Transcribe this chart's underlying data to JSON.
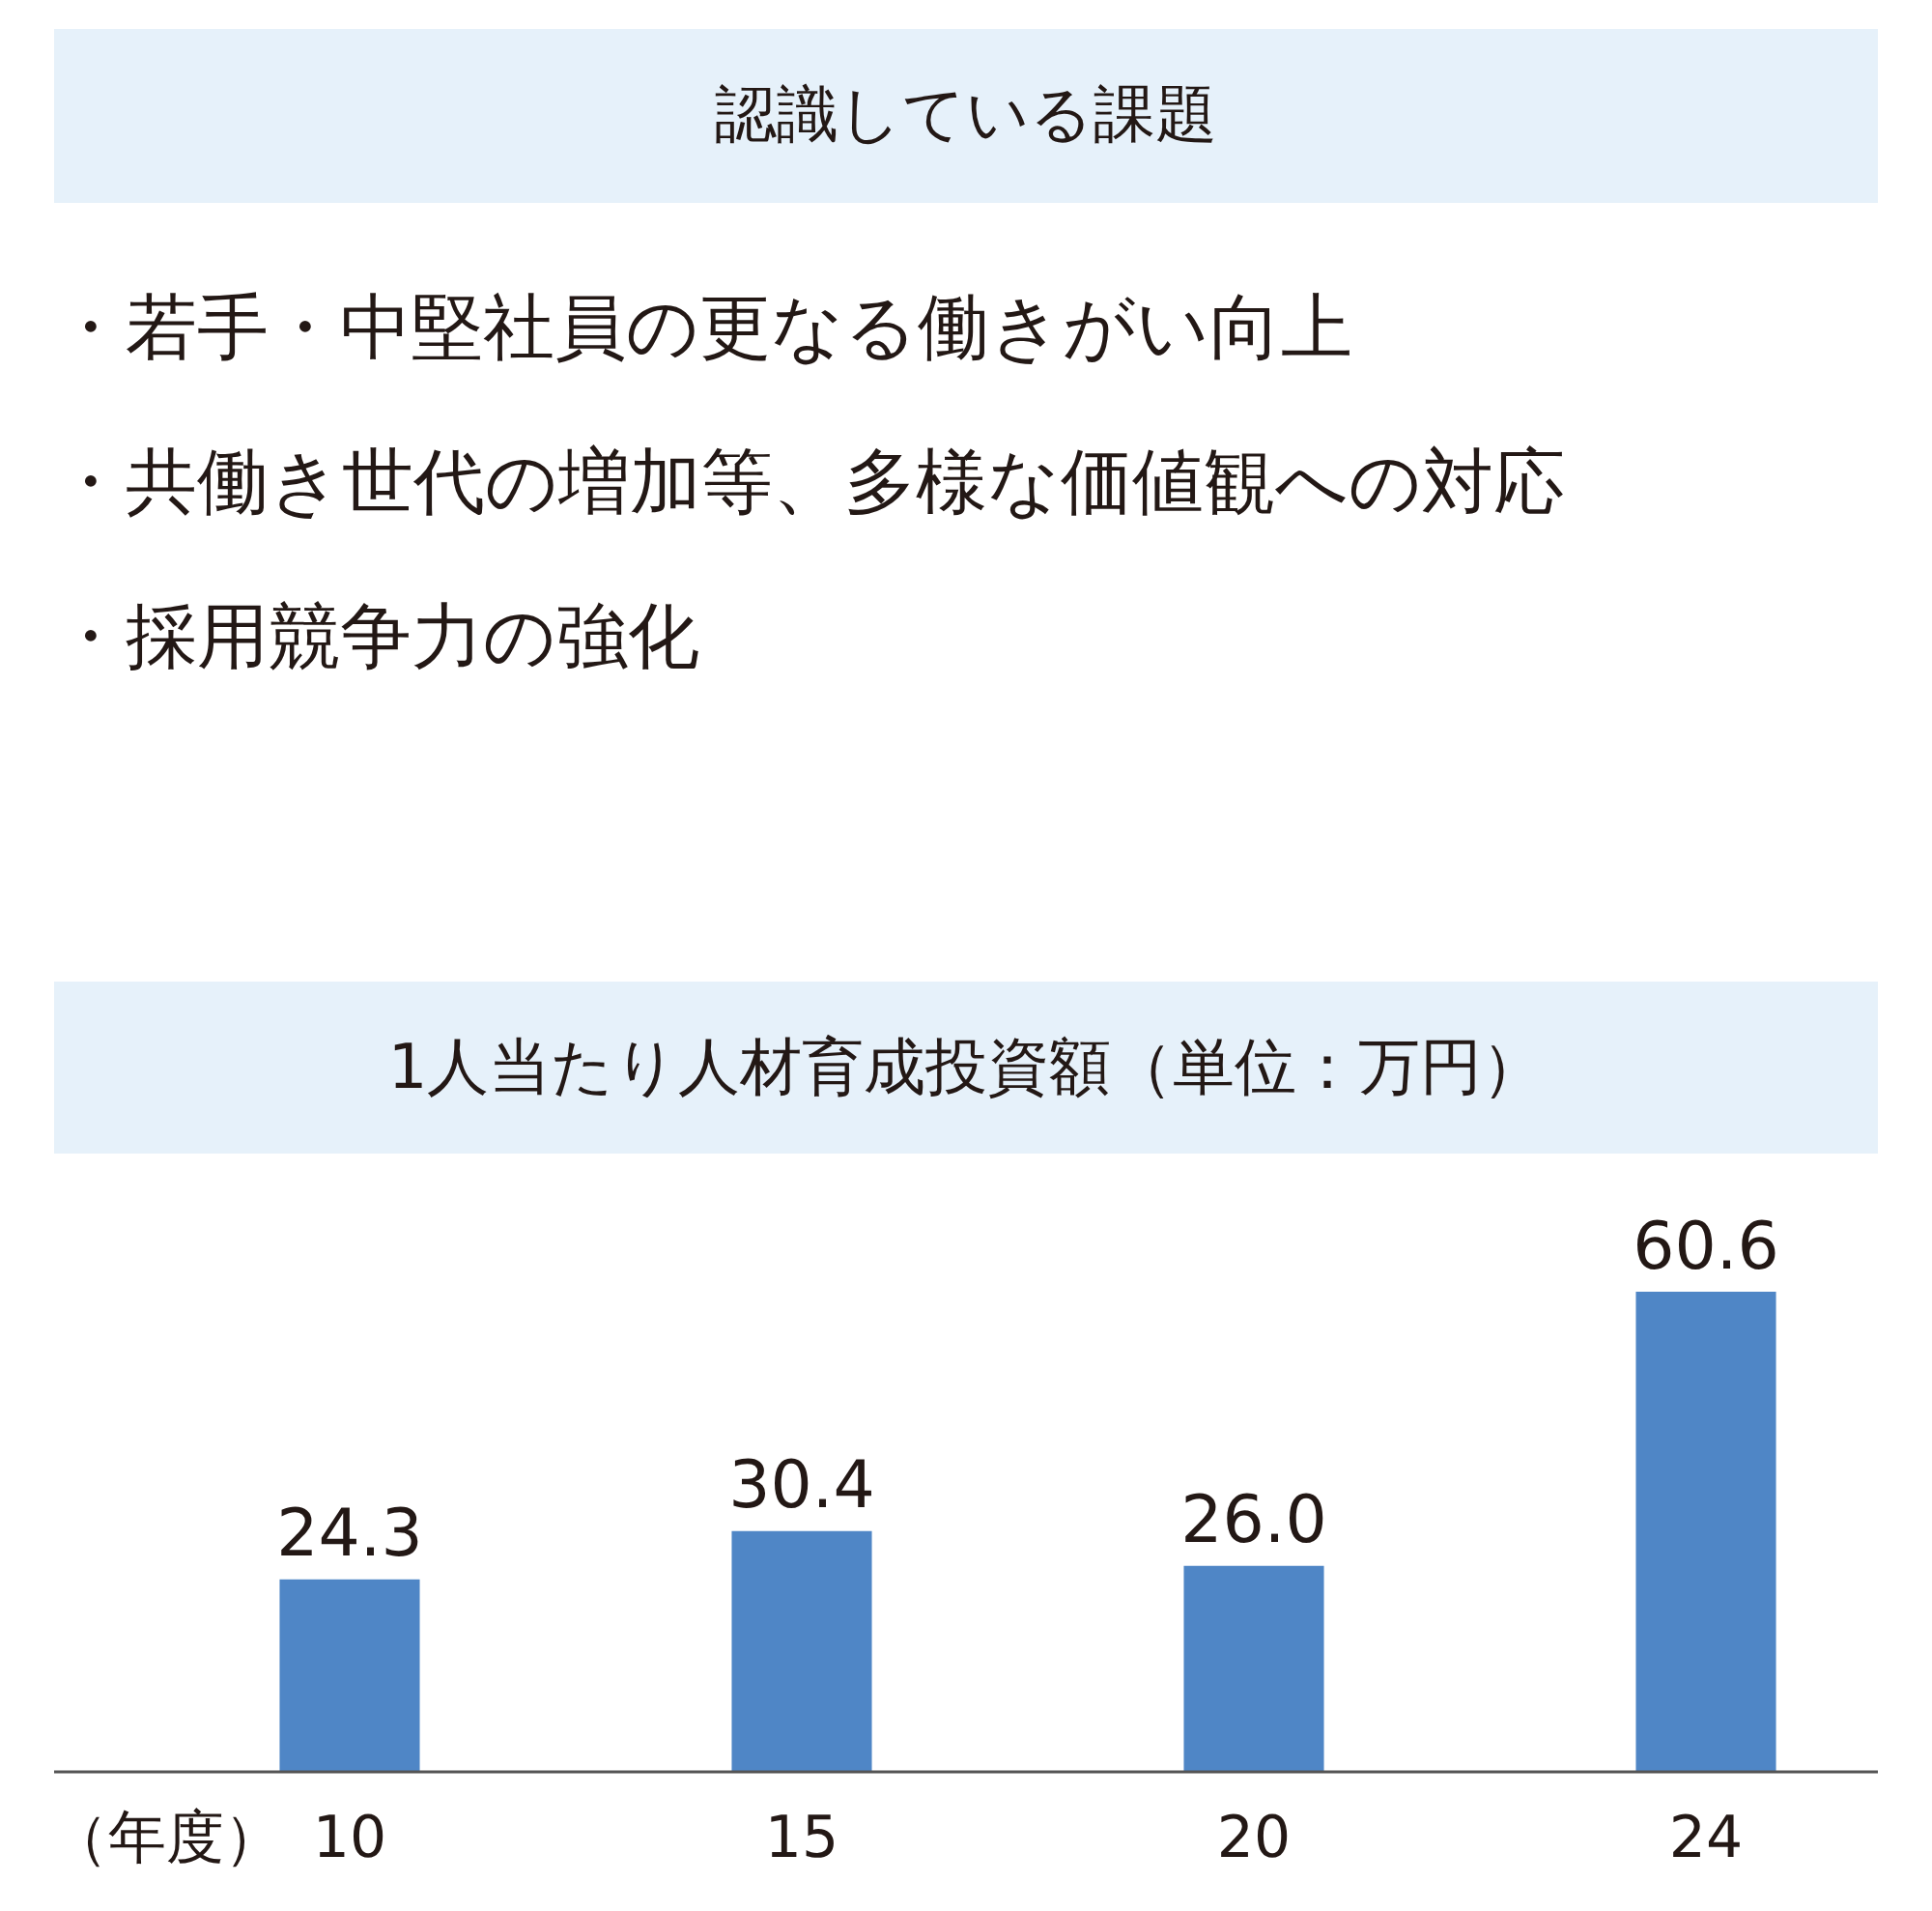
{
  "chart_data": [
    {
      "type": "other",
      "title": "認識している課題",
      "annotations": [
        "・若手・中堅社員の更なる働きがい向上",
        "・共働き世代の増加等、多様な価値観への対応",
        "・採用競争力の強化"
      ]
    },
    {
      "type": "bar",
      "title": "1人当たり人材育成投資額（単位：万円）",
      "xlabel": "（年度）",
      "categories": [
        "10",
        "15",
        "20",
        "24"
      ],
      "values": [
        24.3,
        30.4,
        26.0,
        60.6
      ],
      "value_labels": [
        "24.3",
        "30.4",
        "26.0",
        "60.6"
      ],
      "color": "#4f86c6",
      "tick_labels": "x",
      "grid": false,
      "legend": false
    }
  ]
}
